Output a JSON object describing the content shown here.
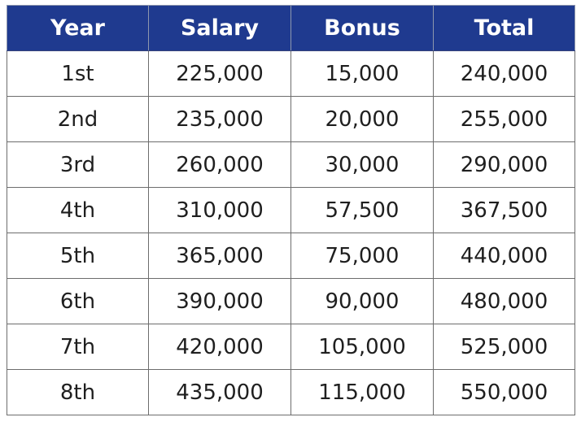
{
  "table": {
    "headers": [
      "Year",
      "Salary",
      "Bonus",
      "Total"
    ],
    "rows": [
      [
        "1st",
        "225,000",
        "15,000",
        "240,000"
      ],
      [
        "2nd",
        "235,000",
        "20,000",
        "255,000"
      ],
      [
        "3rd",
        "260,000",
        "30,000",
        "290,000"
      ],
      [
        "4th",
        "310,000",
        "57,500",
        "367,500"
      ],
      [
        "5th",
        "365,000",
        "75,000",
        "440,000"
      ],
      [
        "6th",
        "390,000",
        "90,000",
        "480,000"
      ],
      [
        "7th",
        "420,000",
        "105,000",
        "525,000"
      ],
      [
        "8th",
        "435,000",
        "115,000",
        "550,000"
      ]
    ]
  },
  "colors": {
    "header_background": "#1f3a8f",
    "header_text": "#ffffff",
    "cell_text": "#1f1f1f",
    "border": "#6d6d6d"
  }
}
